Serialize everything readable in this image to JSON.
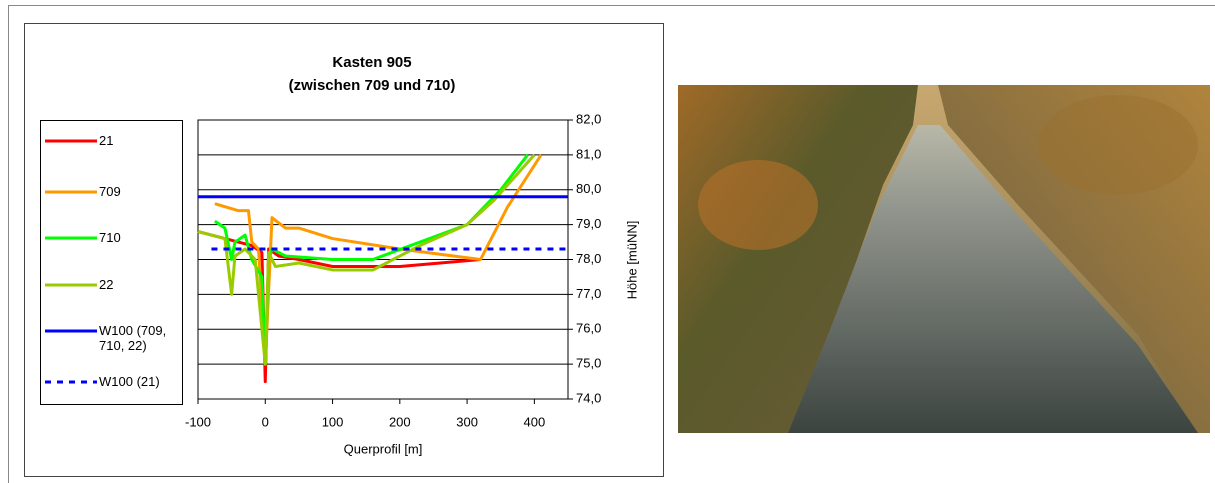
{
  "chart_data": {
    "type": "line",
    "title": "Kasten 905",
    "subtitle": "(zwischen 709 und 710)",
    "x_label": "Querprofil [m]",
    "y_label": "Höhe [müNN]",
    "xlim": [
      -100,
      450
    ],
    "xticks": [
      -100,
      0,
      100,
      200,
      300,
      400
    ],
    "ylim": [
      74,
      82
    ],
    "yticks": [
      {
        "value": 74,
        "label": "74,0"
      },
      {
        "value": 75,
        "label": "75,0"
      },
      {
        "value": 76,
        "label": "76,0"
      },
      {
        "value": 77,
        "label": "77,0"
      },
      {
        "value": 78,
        "label": "78,0"
      },
      {
        "value": 79,
        "label": "79,0"
      },
      {
        "value": 80,
        "label": "80,0"
      },
      {
        "value": 81,
        "label": "81,0"
      },
      {
        "value": 82,
        "label": "82,0"
      }
    ],
    "grid": true,
    "legend": "left",
    "series": [
      {
        "name": "21",
        "color": "#ff0000",
        "style": "solid",
        "x": [
          -100,
          -60,
          -40,
          -20,
          -5,
          0,
          5,
          20,
          50,
          100,
          200,
          320
        ],
        "values": [
          78.8,
          78.6,
          78.5,
          78.4,
          78.2,
          74.5,
          78.3,
          78.1,
          78.0,
          77.8,
          77.8,
          78.0
        ]
      },
      {
        "name": "709",
        "color": "#ff9900",
        "style": "solid",
        "x": [
          -75,
          -40,
          -25,
          -20,
          -10,
          0,
          10,
          30,
          50,
          100,
          200,
          320,
          360,
          410
        ],
        "values": [
          79.6,
          79.4,
          79.4,
          78.5,
          78.3,
          75.0,
          79.2,
          78.9,
          78.9,
          78.6,
          78.3,
          78.0,
          79.5,
          81.0
        ]
      },
      {
        "name": "710",
        "color": "#00ff00",
        "style": "solid",
        "x": [
          -75,
          -60,
          -50,
          -45,
          -30,
          -20,
          -5,
          0,
          5,
          10,
          30,
          100,
          160,
          300,
          350,
          390
        ],
        "values": [
          79.1,
          78.9,
          78.0,
          78.5,
          78.7,
          78.0,
          77.5,
          75.0,
          78.0,
          78.3,
          78.1,
          78.0,
          78.0,
          79.0,
          80.0,
          81.0
        ]
      },
      {
        "name": "22",
        "color": "#99cc00",
        "style": "solid",
        "x": [
          -100,
          -60,
          -50,
          -45,
          -30,
          -15,
          0,
          5,
          15,
          50,
          100,
          160,
          230,
          300,
          340,
          400
        ],
        "values": [
          78.8,
          78.6,
          77.0,
          78.1,
          78.3,
          78.0,
          75.0,
          78.2,
          77.8,
          77.9,
          77.7,
          77.7,
          78.4,
          79.0,
          79.7,
          81.0
        ]
      },
      {
        "name": "W100 (709, 710, 22)",
        "color": "#0000ff",
        "style": "solid",
        "x": [
          -100,
          450
        ],
        "values": [
          79.8,
          79.8
        ]
      },
      {
        "name": "W100 (21)",
        "color": "#0000ff",
        "style": "dashed",
        "x": [
          -80,
          450
        ],
        "values": [
          78.3,
          78.3
        ]
      }
    ]
  }
}
